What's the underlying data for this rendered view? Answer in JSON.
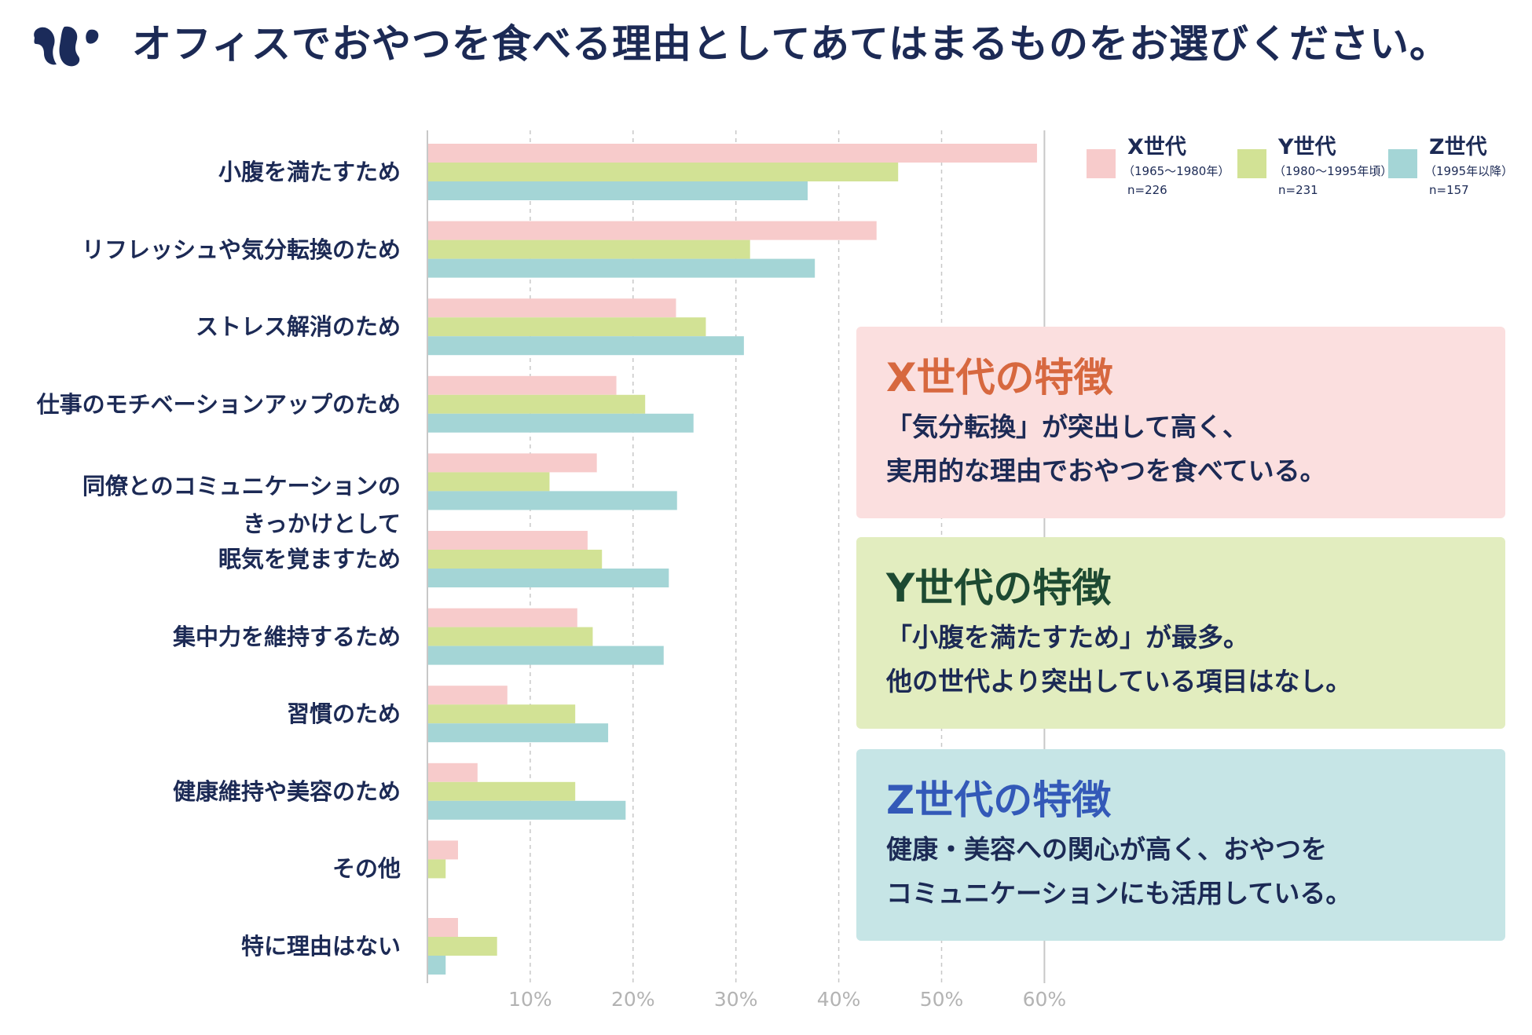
{
  "header": {
    "logo_icon": "squirrel-logo-icon",
    "title": "オフィスでおやつを食べる理由としてあてはまるものをお選びください。"
  },
  "legend": [
    {
      "name": "X世代",
      "period": "（1965〜1980年）",
      "n": "n=226",
      "color": "#f7cbcb"
    },
    {
      "name": "Y世代",
      "period": "（1980〜1995年頃）",
      "n": "n=231",
      "color": "#d2e295"
    },
    {
      "name": "Z世代",
      "period": "（1995年以降）",
      "n": "n=157",
      "color": "#a4d5d6"
    }
  ],
  "notes": [
    {
      "title": "X世代の特徴",
      "lines": [
        "「気分転換」が突出して高く、",
        "実用的な理由でおやつを食べている。"
      ],
      "bg": "#fbdfdf",
      "title_color": "#d7683f"
    },
    {
      "title": "Y世代の特徴",
      "lines": [
        "「小腹を満たすため」が最多。",
        "他の世代より突出している項目はなし。"
      ],
      "bg": "#e2edbf",
      "title_color": "#1d4a32"
    },
    {
      "title": "Z世代の特徴",
      "lines": [
        "健康・美容への関心が高く、おやつを",
        "コミュニケーションにも活用している。"
      ],
      "bg": "#c6e5e6",
      "title_color": "#3359b8"
    }
  ],
  "chart_data": {
    "type": "bar",
    "orientation": "horizontal",
    "title": "オフィスでおやつを食べる理由としてあてはまるものをお選びください。",
    "xlabel": "",
    "ylabel": "",
    "xlim": [
      0,
      60
    ],
    "xticks": [
      10,
      20,
      30,
      40,
      50,
      60
    ],
    "xtick_labels": [
      "10%",
      "20%",
      "30%",
      "40%",
      "50%",
      "60%"
    ],
    "grid": true,
    "legend_position": "top-right",
    "categories": [
      "小腹を満たすため",
      "リフレッシュや気分転換のため",
      "ストレス解消のため",
      "仕事のモチベーションアップのため",
      "同僚とのコミュニケーションの\nきっかけとして",
      "眠気を覚ますため",
      "集中力を維持するため",
      "習慣のため",
      "健康維持や美容のため",
      "その他",
      "特に理由はない"
    ],
    "series": [
      {
        "name": "X世代",
        "values": [
          59.2,
          43.6,
          24.1,
          18.3,
          16.4,
          15.5,
          14.5,
          7.7,
          4.8,
          2.9,
          2.9
        ]
      },
      {
        "name": "Y世代",
        "values": [
          45.7,
          31.3,
          27.0,
          21.1,
          11.8,
          16.9,
          16.0,
          14.3,
          14.3,
          1.7,
          6.7
        ]
      },
      {
        "name": "Z世代",
        "values": [
          36.9,
          37.6,
          30.7,
          25.8,
          24.2,
          23.4,
          22.9,
          17.5,
          19.2,
          0,
          1.7
        ]
      }
    ]
  }
}
